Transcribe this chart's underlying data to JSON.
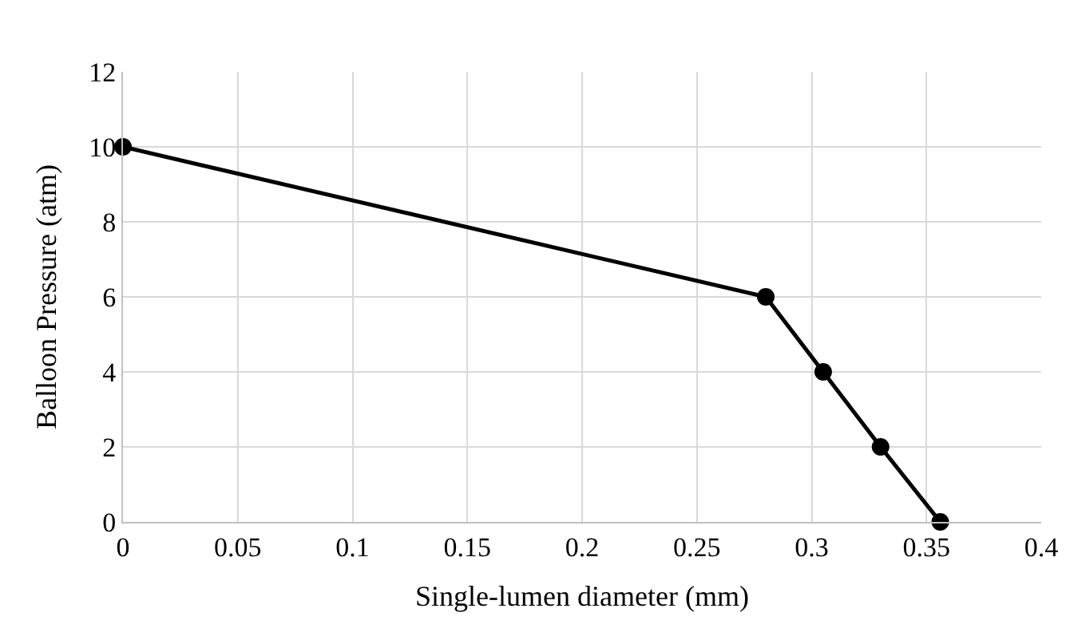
{
  "chart_data": {
    "type": "line",
    "xlabel": "Single-lumen diameter (mm)",
    "ylabel": "Balloon Pressure (atm)",
    "x": [
      0,
      0.28,
      0.305,
      0.33,
      0.356
    ],
    "series": [
      {
        "color": "#000000",
        "values": [
          10,
          6,
          4,
          2,
          0
        ]
      }
    ],
    "xlim": [
      0,
      0.4
    ],
    "xticks": [
      0,
      0.05,
      0.1,
      0.15,
      0.2,
      0.25,
      0.3,
      0.35,
      0.4
    ],
    "ylim": [
      0,
      12
    ],
    "yticks": [
      0,
      2,
      4,
      6,
      8,
      10,
      12
    ],
    "grid": true,
    "legend": false,
    "marker": "circle",
    "line_style": "solid"
  }
}
